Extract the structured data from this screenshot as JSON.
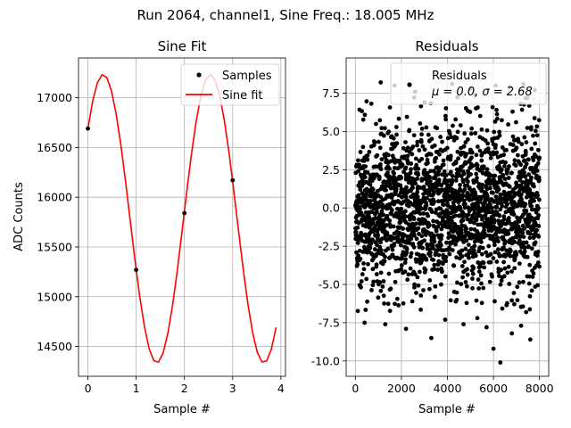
{
  "figure": {
    "suptitle": "Run 2064, channel1, Sine Freq.: 18.005 MHz"
  },
  "chart_data": [
    {
      "type": "line",
      "title": "Sine Fit",
      "xlabel": "Sample #",
      "ylabel": "ADC Counts",
      "xlim": [
        -0.195,
        4.095
      ],
      "ylim": [
        14200,
        17400
      ],
      "xticks": [
        0,
        1,
        2,
        3,
        4
      ],
      "yticks": [
        14500,
        15000,
        15500,
        16000,
        16500,
        17000
      ],
      "grid": true,
      "legend_position": "top-right",
      "series": [
        {
          "name": "Samples",
          "style": "markers",
          "color": "#000000",
          "x": [
            0,
            1,
            2,
            3
          ],
          "y": [
            16690,
            15270,
            15840,
            16170
          ]
        },
        {
          "name": "Sine fit",
          "style": "line",
          "color": "#ff0000",
          "model": {
            "offset": 15785,
            "amplitude": 1450,
            "period": 2.22,
            "phase": 0.6738
          },
          "x_range": [
            0,
            3.9
          ]
        }
      ]
    },
    {
      "type": "scatter",
      "title": "Residuals",
      "xlabel": "Sample #",
      "ylabel": "",
      "xlim": [
        -400,
        8400
      ],
      "ylim": [
        -11,
        9.8
      ],
      "xticks": [
        0,
        2000,
        4000,
        6000,
        8000
      ],
      "yticks": [
        -10.0,
        -7.5,
        -5.0,
        -2.5,
        0.0,
        2.5,
        5.0,
        7.5
      ],
      "grid": true,
      "legend_position": "top-right",
      "series": [
        {
          "name": "Residuals",
          "color": "#000000",
          "n_points": 8000,
          "mean": 0.0,
          "sigma": 2.68,
          "note": "dense noise band, bulk within about -6.5 to 6.5 with outliers",
          "outliers": [
            [
              1100,
              8.2
            ],
            [
              1700,
              8.0
            ],
            [
              2600,
              7.6
            ],
            [
              4200,
              8.1
            ],
            [
              5000,
              7.8
            ],
            [
              6100,
              8.0
            ],
            [
              6700,
              7.9
            ],
            [
              7300,
              8.1
            ],
            [
              7800,
              7.7
            ],
            [
              400,
              -7.5
            ],
            [
              1300,
              -7.6
            ],
            [
              2200,
              -7.9
            ],
            [
              3300,
              -8.5
            ],
            [
              3900,
              -7.3
            ],
            [
              4700,
              -7.6
            ],
            [
              5300,
              -7.2
            ],
            [
              5700,
              -7.8
            ],
            [
              6000,
              -9.2
            ],
            [
              6300,
              -10.1
            ],
            [
              6800,
              -8.2
            ],
            [
              7200,
              -7.7
            ],
            [
              7600,
              -8.6
            ]
          ]
        }
      ],
      "legend": {
        "label": "Residuals",
        "stats_prefix_mu": "μ = 0.0, ",
        "stats_prefix_sigma": "σ = 2.68"
      }
    }
  ]
}
